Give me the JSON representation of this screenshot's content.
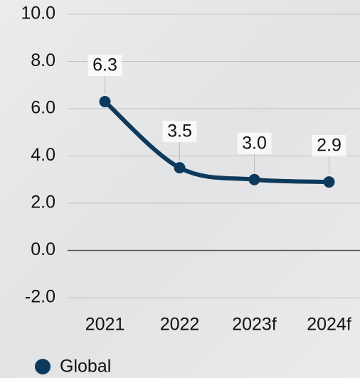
{
  "chart_data": {
    "type": "line",
    "categories": [
      "2021",
      "2022",
      "2023f",
      "2024f"
    ],
    "series": [
      {
        "name": "Global",
        "color": "#0d3a5c",
        "values": [
          6.3,
          3.5,
          3.0,
          2.9
        ],
        "value_labels": [
          "6.3",
          "3.5",
          "3.0",
          "2.9"
        ]
      }
    ],
    "ylim": [
      -2,
      10
    ],
    "yticks": [
      {
        "value": -2,
        "label": "-2.0"
      },
      {
        "value": 0,
        "label": "0.0"
      },
      {
        "value": 2,
        "label": "2.0"
      },
      {
        "value": 4,
        "label": "4.0"
      },
      {
        "value": 6,
        "label": "6.0"
      },
      {
        "value": 8,
        "label": "8.0"
      },
      {
        "value": 10,
        "label": "10.0"
      }
    ],
    "grid": true
  }
}
